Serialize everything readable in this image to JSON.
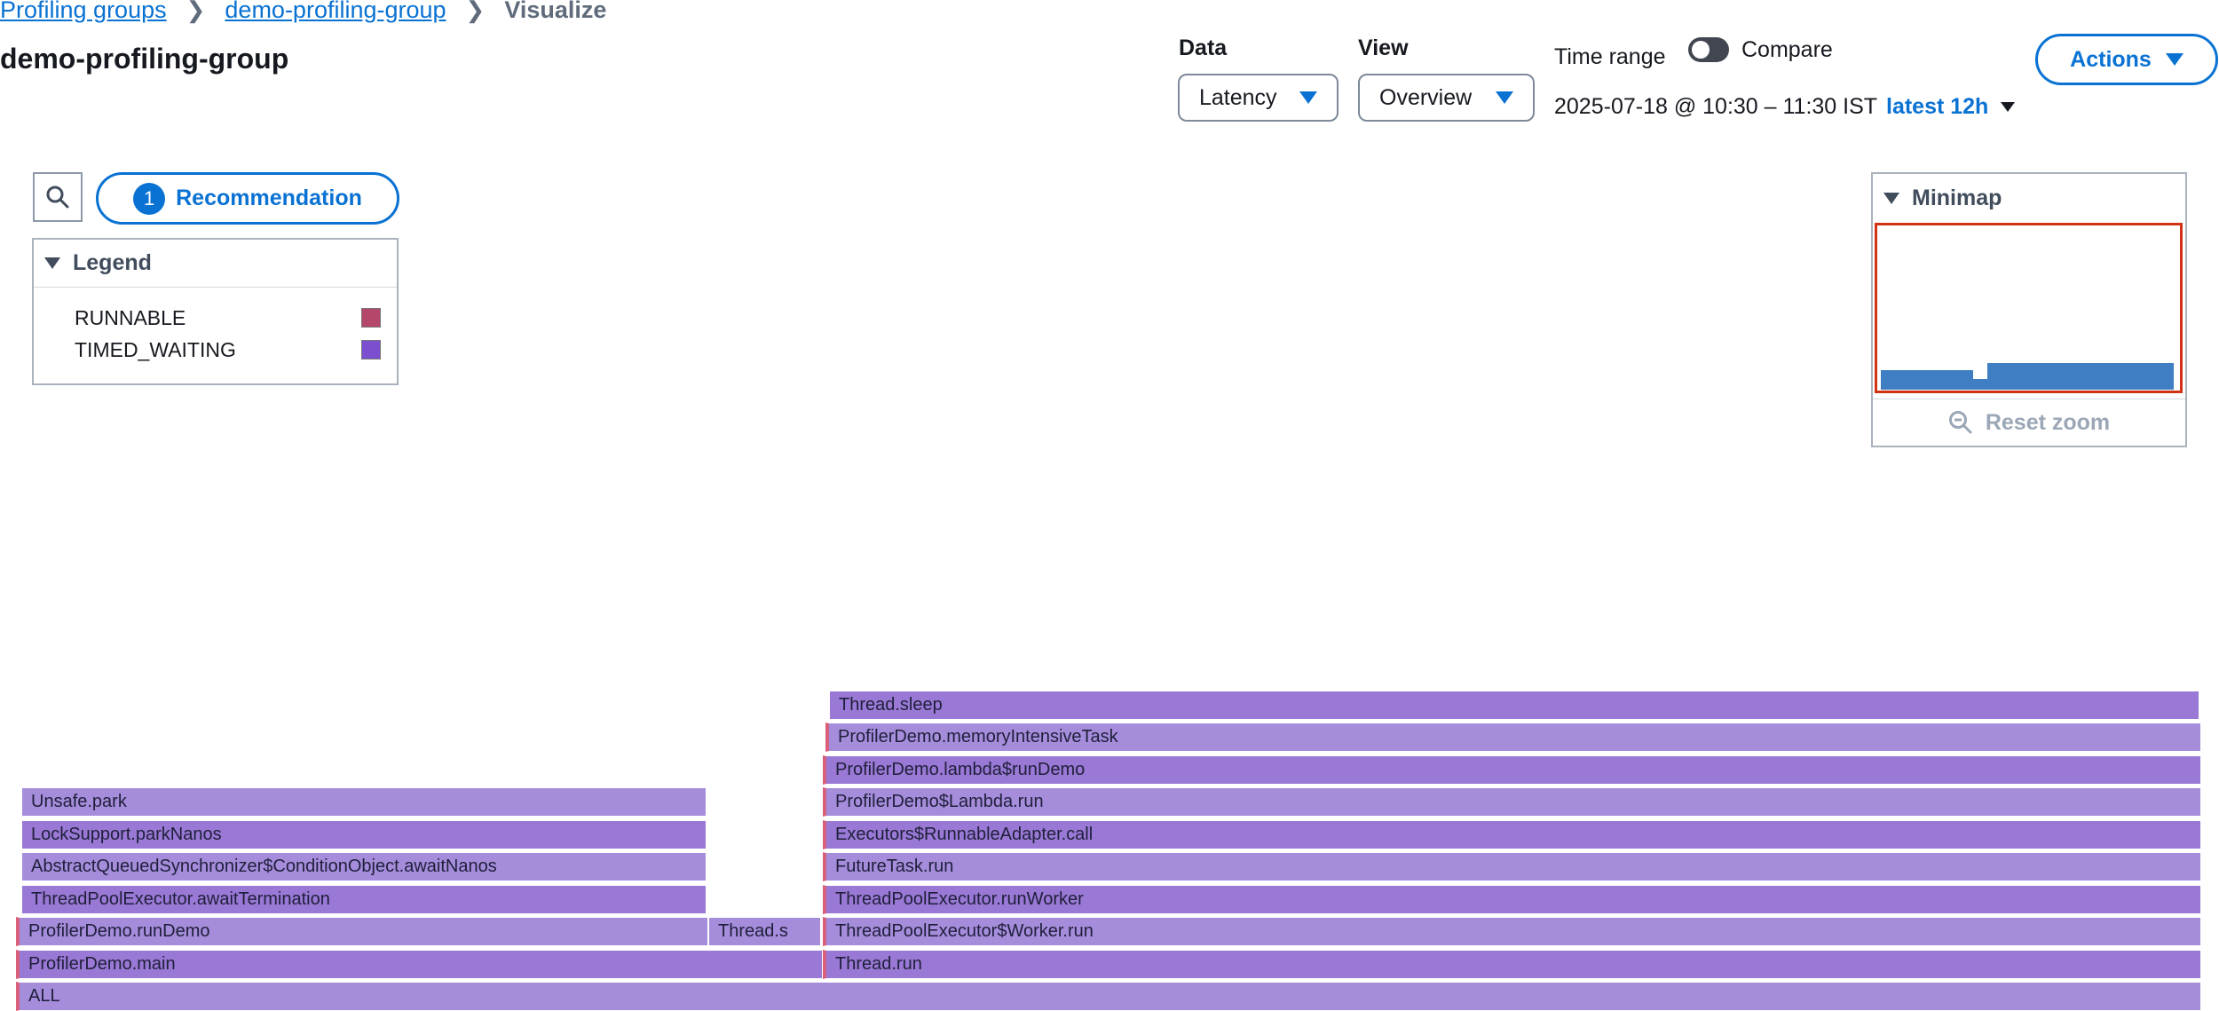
{
  "breadcrumb": {
    "items": [
      "Profiling groups",
      "demo-profiling-group"
    ],
    "current": "Visualize"
  },
  "page_title": "demo-profiling-group",
  "controls": {
    "data_label": "Data",
    "data_value": "Latency",
    "view_label": "View",
    "view_value": "Overview",
    "time_range_label": "Time range",
    "compare_label": "Compare",
    "time_range_value": "2025-07-18 @ 10:30 – 11:30 IST",
    "latest_label": "latest 12h",
    "actions_label": "Actions"
  },
  "recommendation": {
    "count": "1",
    "label": "Recommendation"
  },
  "legend": {
    "title": "Legend",
    "items": [
      {
        "label": "RUNNABLE",
        "color": "#b5476a"
      },
      {
        "label": "TIMED_WAITING",
        "color": "#7c4fd0"
      }
    ]
  },
  "minimap": {
    "title": "Minimap",
    "reset_label": "Reset zoom"
  },
  "flamegraph": {
    "frames": [
      {
        "label": "ALL"
      },
      {
        "label": "ProfilerDemo.main"
      },
      {
        "label": "Thread.run"
      },
      {
        "label": "ProfilerDemo.runDemo"
      },
      {
        "label": "Thread.s"
      },
      {
        "label": "ThreadPoolExecutor$Worker.run"
      },
      {
        "label": "ThreadPoolExecutor.awaitTermination"
      },
      {
        "label": "ThreadPoolExecutor.runWorker"
      },
      {
        "label": "AbstractQueuedSynchronizer$ConditionObject.awaitNanos"
      },
      {
        "label": "FutureTask.run"
      },
      {
        "label": "LockSupport.parkNanos"
      },
      {
        "label": "Executors$RunnableAdapter.call"
      },
      {
        "label": "Unsafe.park"
      },
      {
        "label": "ProfilerDemo$Lambda.run"
      },
      {
        "label": "ProfilerDemo.lambda$runDemo"
      },
      {
        "label": "ProfilerDemo.memoryIntensiveTask"
      },
      {
        "label": "Thread.sleep"
      }
    ]
  },
  "colors": {
    "accent": "#0972d3",
    "frame_primary": "#9979d5",
    "frame_secondary": "#a58ddc",
    "runnable": "#b5476a",
    "minimap_view": "#d13212"
  }
}
